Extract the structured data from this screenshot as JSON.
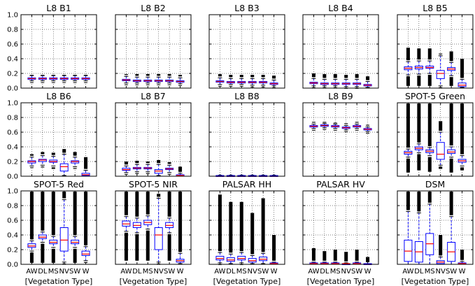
{
  "chart_data": {
    "type": "boxplot",
    "shared_categories": [
      "AW",
      "DL",
      "MS",
      "NV",
      "SW",
      "W"
    ],
    "shared_xlabel": "[Vegetation Type]",
    "ylim": [
      0,
      1.0
    ],
    "yticks": [
      "0.0",
      "0.2",
      "0.4",
      "0.6",
      "0.8",
      "1.0"
    ],
    "grid": true,
    "colors": {
      "box": "#0000ff",
      "median": "#ff0000",
      "flier": "#000000"
    },
    "panels": [
      {
        "title": "L8 B1",
        "boxes": [
          {
            "q1": 0.12,
            "med": 0.13,
            "q3": 0.14,
            "lo": 0.1,
            "hi": 0.17,
            "flo": 0.09,
            "fhi": 0.18
          },
          {
            "q1": 0.12,
            "med": 0.13,
            "q3": 0.14,
            "lo": 0.1,
            "hi": 0.17,
            "flo": 0.09,
            "fhi": 0.18
          },
          {
            "q1": 0.12,
            "med": 0.13,
            "q3": 0.14,
            "lo": 0.1,
            "hi": 0.17,
            "flo": 0.09,
            "fhi": 0.18
          },
          {
            "q1": 0.12,
            "med": 0.13,
            "q3": 0.14,
            "lo": 0.1,
            "hi": 0.17,
            "flo": 0.09,
            "fhi": 0.18
          },
          {
            "q1": 0.12,
            "med": 0.13,
            "q3": 0.14,
            "lo": 0.1,
            "hi": 0.17,
            "flo": 0.09,
            "fhi": 0.18
          },
          {
            "q1": 0.12,
            "med": 0.13,
            "q3": 0.14,
            "lo": 0.1,
            "hi": 0.17,
            "flo": 0.09,
            "fhi": 0.18
          }
        ]
      },
      {
        "title": "L8 B2",
        "boxes": [
          {
            "q1": 0.1,
            "med": 0.11,
            "q3": 0.12,
            "lo": 0.07,
            "hi": 0.16,
            "flo": 0.06,
            "fhi": 0.19
          },
          {
            "q1": 0.09,
            "med": 0.1,
            "q3": 0.11,
            "lo": 0.07,
            "hi": 0.15,
            "flo": 0.06,
            "fhi": 0.19
          },
          {
            "q1": 0.09,
            "med": 0.1,
            "q3": 0.11,
            "lo": 0.07,
            "hi": 0.15,
            "flo": 0.06,
            "fhi": 0.19
          },
          {
            "q1": 0.09,
            "med": 0.1,
            "q3": 0.11,
            "lo": 0.07,
            "hi": 0.15,
            "flo": 0.06,
            "fhi": 0.19
          },
          {
            "q1": 0.09,
            "med": 0.1,
            "q3": 0.11,
            "lo": 0.07,
            "hi": 0.15,
            "flo": 0.06,
            "fhi": 0.19
          },
          {
            "q1": 0.08,
            "med": 0.09,
            "q3": 0.1,
            "lo": 0.06,
            "hi": 0.14,
            "flo": 0.05,
            "fhi": 0.18
          }
        ]
      },
      {
        "title": "L8 B3",
        "boxes": [
          {
            "q1": 0.08,
            "med": 0.09,
            "q3": 0.1,
            "lo": 0.05,
            "hi": 0.14,
            "flo": 0.04,
            "fhi": 0.19
          },
          {
            "q1": 0.07,
            "med": 0.08,
            "q3": 0.09,
            "lo": 0.05,
            "hi": 0.13,
            "flo": 0.04,
            "fhi": 0.18
          },
          {
            "q1": 0.07,
            "med": 0.08,
            "q3": 0.09,
            "lo": 0.05,
            "hi": 0.13,
            "flo": 0.04,
            "fhi": 0.18
          },
          {
            "q1": 0.07,
            "med": 0.08,
            "q3": 0.09,
            "lo": 0.04,
            "hi": 0.13,
            "flo": 0.03,
            "fhi": 0.18
          },
          {
            "q1": 0.07,
            "med": 0.08,
            "q3": 0.09,
            "lo": 0.04,
            "hi": 0.13,
            "flo": 0.03,
            "fhi": 0.18
          },
          {
            "q1": 0.05,
            "med": 0.06,
            "q3": 0.07,
            "lo": 0.03,
            "hi": 0.11,
            "flo": 0.02,
            "fhi": 0.17
          }
        ]
      },
      {
        "title": "L8 B4",
        "boxes": [
          {
            "q1": 0.06,
            "med": 0.07,
            "q3": 0.08,
            "lo": 0.03,
            "hi": 0.13,
            "flo": 0.02,
            "fhi": 0.2
          },
          {
            "q1": 0.05,
            "med": 0.06,
            "q3": 0.07,
            "lo": 0.03,
            "hi": 0.12,
            "flo": 0.02,
            "fhi": 0.19
          },
          {
            "q1": 0.05,
            "med": 0.06,
            "q3": 0.07,
            "lo": 0.03,
            "hi": 0.12,
            "flo": 0.02,
            "fhi": 0.19
          },
          {
            "q1": 0.05,
            "med": 0.06,
            "q3": 0.07,
            "lo": 0.02,
            "hi": 0.12,
            "flo": 0.01,
            "fhi": 0.18
          },
          {
            "q1": 0.05,
            "med": 0.06,
            "q3": 0.07,
            "lo": 0.02,
            "hi": 0.12,
            "flo": 0.01,
            "fhi": 0.19
          },
          {
            "q1": 0.03,
            "med": 0.04,
            "q3": 0.05,
            "lo": 0.01,
            "hi": 0.09,
            "flo": 0.01,
            "fhi": 0.16
          }
        ]
      },
      {
        "title": "L8 B5",
        "boxes": [
          {
            "q1": 0.25,
            "med": 0.27,
            "q3": 0.29,
            "lo": 0.18,
            "hi": 0.36,
            "flo": 0.03,
            "fhi": 0.55
          },
          {
            "q1": 0.26,
            "med": 0.28,
            "q3": 0.3,
            "lo": 0.19,
            "hi": 0.37,
            "flo": 0.03,
            "fhi": 0.54
          },
          {
            "q1": 0.27,
            "med": 0.28,
            "q3": 0.3,
            "lo": 0.2,
            "hi": 0.37,
            "flo": 0.03,
            "fhi": 0.54
          },
          {
            "q1": 0.13,
            "med": 0.2,
            "q3": 0.24,
            "lo": 0.03,
            "hi": 0.44,
            "flo": 0.02,
            "fhi": 0.47
          },
          {
            "q1": 0.24,
            "med": 0.26,
            "q3": 0.28,
            "lo": 0.17,
            "hi": 0.35,
            "flo": 0.03,
            "fhi": 0.5
          },
          {
            "q1": 0.02,
            "med": 0.04,
            "q3": 0.07,
            "lo": 0.01,
            "hi": 0.12,
            "flo": 0.01,
            "fhi": 0.4
          }
        ]
      },
      {
        "title": "L8 B6",
        "boxes": [
          {
            "q1": 0.18,
            "med": 0.2,
            "q3": 0.21,
            "lo": 0.14,
            "hi": 0.26,
            "flo": 0.12,
            "fhi": 0.3
          },
          {
            "q1": 0.2,
            "med": 0.22,
            "q3": 0.23,
            "lo": 0.15,
            "hi": 0.28,
            "flo": 0.12,
            "fhi": 0.33
          },
          {
            "q1": 0.19,
            "med": 0.2,
            "q3": 0.22,
            "lo": 0.14,
            "hi": 0.27,
            "flo": 0.1,
            "fhi": 0.32
          },
          {
            "q1": 0.07,
            "med": 0.13,
            "q3": 0.17,
            "lo": 0.01,
            "hi": 0.3,
            "flo": 0.01,
            "fhi": 0.37
          },
          {
            "q1": 0.18,
            "med": 0.2,
            "q3": 0.21,
            "lo": 0.13,
            "hi": 0.26,
            "flo": 0.1,
            "fhi": 0.33
          },
          {
            "q1": 0.01,
            "med": 0.02,
            "q3": 0.04,
            "lo": 0.0,
            "hi": 0.08,
            "flo": 0.0,
            "fhi": 0.26
          }
        ]
      },
      {
        "title": "L8 B7",
        "boxes": [
          {
            "q1": 0.08,
            "med": 0.09,
            "q3": 0.11,
            "lo": 0.05,
            "hi": 0.14,
            "flo": 0.03,
            "fhi": 0.2
          },
          {
            "q1": 0.1,
            "med": 0.11,
            "q3": 0.12,
            "lo": 0.06,
            "hi": 0.16,
            "flo": 0.03,
            "fhi": 0.21
          },
          {
            "q1": 0.1,
            "med": 0.11,
            "q3": 0.12,
            "lo": 0.06,
            "hi": 0.16,
            "flo": 0.03,
            "fhi": 0.2
          },
          {
            "q1": 0.04,
            "med": 0.07,
            "q3": 0.09,
            "lo": 0.01,
            "hi": 0.16,
            "flo": 0.01,
            "fhi": 0.22
          },
          {
            "q1": 0.09,
            "med": 0.1,
            "q3": 0.11,
            "lo": 0.05,
            "hi": 0.15,
            "flo": 0.03,
            "fhi": 0.19
          },
          {
            "q1": 0.0,
            "med": 0.01,
            "q3": 0.02,
            "lo": 0.0,
            "hi": 0.04,
            "flo": 0.0,
            "fhi": 0.13
          }
        ]
      },
      {
        "title": "L8 B8",
        "boxes": [
          {
            "q1": 0.0,
            "med": 0.0,
            "q3": 0.01,
            "lo": 0.0,
            "hi": 0.01,
            "flo": 0.0,
            "fhi": 0.02
          },
          {
            "q1": 0.0,
            "med": 0.0,
            "q3": 0.01,
            "lo": 0.0,
            "hi": 0.01,
            "flo": 0.0,
            "fhi": 0.02
          },
          {
            "q1": 0.0,
            "med": 0.0,
            "q3": 0.01,
            "lo": 0.0,
            "hi": 0.01,
            "flo": 0.0,
            "fhi": 0.02
          },
          {
            "q1": 0.0,
            "med": 0.0,
            "q3": 0.01,
            "lo": 0.0,
            "hi": 0.01,
            "flo": 0.0,
            "fhi": 0.02
          },
          {
            "q1": 0.0,
            "med": 0.0,
            "q3": 0.01,
            "lo": 0.0,
            "hi": 0.01,
            "flo": 0.0,
            "fhi": 0.02
          },
          {
            "q1": 0.0,
            "med": 0.0,
            "q3": 0.01,
            "lo": 0.0,
            "hi": 0.01,
            "flo": 0.0,
            "fhi": 0.02
          }
        ]
      },
      {
        "title": "L8 B9",
        "boxes": [
          {
            "q1": 0.67,
            "med": 0.68,
            "q3": 0.69,
            "lo": 0.65,
            "hi": 0.71,
            "flo": 0.63,
            "fhi": 0.74
          },
          {
            "q1": 0.68,
            "med": 0.69,
            "q3": 0.7,
            "lo": 0.66,
            "hi": 0.72,
            "flo": 0.64,
            "fhi": 0.74
          },
          {
            "q1": 0.67,
            "med": 0.68,
            "q3": 0.69,
            "lo": 0.65,
            "hi": 0.71,
            "flo": 0.63,
            "fhi": 0.73
          },
          {
            "q1": 0.65,
            "med": 0.66,
            "q3": 0.67,
            "lo": 0.63,
            "hi": 0.69,
            "flo": 0.61,
            "fhi": 0.72
          },
          {
            "q1": 0.67,
            "med": 0.68,
            "q3": 0.69,
            "lo": 0.65,
            "hi": 0.71,
            "flo": 0.63,
            "fhi": 0.74
          },
          {
            "q1": 0.63,
            "med": 0.64,
            "q3": 0.65,
            "lo": 0.61,
            "hi": 0.67,
            "flo": 0.6,
            "fhi": 0.7
          }
        ]
      },
      {
        "title": "SPOT-5 Green",
        "boxes": [
          {
            "q1": 0.3,
            "med": 0.32,
            "q3": 0.34,
            "lo": 0.26,
            "hi": 0.37,
            "flo": 0.05,
            "fhi": 0.99
          },
          {
            "q1": 0.36,
            "med": 0.38,
            "q3": 0.4,
            "lo": 0.32,
            "hi": 0.44,
            "flo": 0.08,
            "fhi": 0.99
          },
          {
            "q1": 0.32,
            "med": 0.34,
            "q3": 0.36,
            "lo": 0.28,
            "hi": 0.39,
            "flo": 0.06,
            "fhi": 0.99
          },
          {
            "q1": 0.23,
            "med": 0.3,
            "q3": 0.46,
            "lo": 0.15,
            "hi": 0.6,
            "flo": 0.1,
            "fhi": 0.75
          },
          {
            "q1": 0.31,
            "med": 0.33,
            "q3": 0.36,
            "lo": 0.26,
            "hi": 0.4,
            "flo": 0.05,
            "fhi": 0.99
          },
          {
            "q1": 0.19,
            "med": 0.21,
            "q3": 0.23,
            "lo": 0.14,
            "hi": 0.28,
            "flo": 0.08,
            "fhi": 0.99
          }
        ]
      },
      {
        "title": "SPOT-5 Red",
        "boxes": [
          {
            "q1": 0.23,
            "med": 0.25,
            "q3": 0.28,
            "lo": 0.18,
            "hi": 0.32,
            "flo": 0.02,
            "fhi": 0.99
          },
          {
            "q1": 0.35,
            "med": 0.37,
            "q3": 0.4,
            "lo": 0.3,
            "hi": 0.44,
            "flo": 0.02,
            "fhi": 0.99
          },
          {
            "q1": 0.28,
            "med": 0.3,
            "q3": 0.33,
            "lo": 0.23,
            "hi": 0.38,
            "flo": 0.02,
            "fhi": 0.99
          },
          {
            "q1": 0.18,
            "med": 0.33,
            "q3": 0.5,
            "lo": 0.03,
            "hi": 0.88,
            "flo": 0.02,
            "fhi": 0.99
          },
          {
            "q1": 0.28,
            "med": 0.3,
            "q3": 0.33,
            "lo": 0.23,
            "hi": 0.38,
            "flo": 0.02,
            "fhi": 0.99
          },
          {
            "q1": 0.12,
            "med": 0.14,
            "q3": 0.18,
            "lo": 0.05,
            "hi": 0.24,
            "flo": 0.02,
            "fhi": 0.99
          }
        ]
      },
      {
        "title": "SPOT-5 NIR",
        "boxes": [
          {
            "q1": 0.52,
            "med": 0.55,
            "q3": 0.59,
            "lo": 0.45,
            "hi": 0.65,
            "flo": 0.05,
            "fhi": 0.99
          },
          {
            "q1": 0.5,
            "med": 0.53,
            "q3": 0.57,
            "lo": 0.43,
            "hi": 0.63,
            "flo": 0.05,
            "fhi": 0.99
          },
          {
            "q1": 0.54,
            "med": 0.57,
            "q3": 0.6,
            "lo": 0.48,
            "hi": 0.66,
            "flo": 0.05,
            "fhi": 0.99
          },
          {
            "q1": 0.2,
            "med": 0.4,
            "q3": 0.5,
            "lo": 0.03,
            "hi": 0.9,
            "flo": 0.02,
            "fhi": 0.96
          },
          {
            "q1": 0.5,
            "med": 0.53,
            "q3": 0.57,
            "lo": 0.43,
            "hi": 0.63,
            "flo": 0.05,
            "fhi": 0.99
          },
          {
            "q1": 0.03,
            "med": 0.05,
            "q3": 0.07,
            "lo": 0.01,
            "hi": 0.15,
            "flo": 0.01,
            "fhi": 0.99
          }
        ]
      },
      {
        "title": "PALSAR HH",
        "boxes": [
          {
            "q1": 0.06,
            "med": 0.08,
            "q3": 0.11,
            "lo": 0.02,
            "hi": 0.16,
            "flo": 0.01,
            "fhi": 0.95
          },
          {
            "q1": 0.04,
            "med": 0.06,
            "q3": 0.09,
            "lo": 0.01,
            "hi": 0.14,
            "flo": 0.01,
            "fhi": 0.85
          },
          {
            "q1": 0.06,
            "med": 0.08,
            "q3": 0.11,
            "lo": 0.02,
            "hi": 0.16,
            "flo": 0.01,
            "fhi": 0.85
          },
          {
            "q1": 0.03,
            "med": 0.05,
            "q3": 0.08,
            "lo": 0.01,
            "hi": 0.12,
            "flo": 0.01,
            "fhi": 0.7
          },
          {
            "q1": 0.05,
            "med": 0.07,
            "q3": 0.1,
            "lo": 0.01,
            "hi": 0.15,
            "flo": 0.01,
            "fhi": 0.9
          },
          {
            "q1": 0.0,
            "med": 0.01,
            "q3": 0.02,
            "lo": 0.0,
            "hi": 0.03,
            "flo": 0.0,
            "fhi": 0.4
          }
        ]
      },
      {
        "title": "PALSAR HV",
        "boxes": [
          {
            "q1": 0.0,
            "med": 0.01,
            "q3": 0.02,
            "lo": 0.0,
            "hi": 0.03,
            "flo": 0.0,
            "fhi": 0.22
          },
          {
            "q1": 0.0,
            "med": 0.01,
            "q3": 0.02,
            "lo": 0.0,
            "hi": 0.03,
            "flo": 0.0,
            "fhi": 0.18
          },
          {
            "q1": 0.0,
            "med": 0.01,
            "q3": 0.02,
            "lo": 0.0,
            "hi": 0.03,
            "flo": 0.0,
            "fhi": 0.2
          },
          {
            "q1": 0.0,
            "med": 0.01,
            "q3": 0.01,
            "lo": 0.0,
            "hi": 0.02,
            "flo": 0.0,
            "fhi": 0.17
          },
          {
            "q1": 0.0,
            "med": 0.01,
            "q3": 0.02,
            "lo": 0.0,
            "hi": 0.03,
            "flo": 0.0,
            "fhi": 0.2
          },
          {
            "q1": 0.0,
            "med": 0.0,
            "q3": 0.01,
            "lo": 0.0,
            "hi": 0.01,
            "flo": 0.0,
            "fhi": 0.1
          }
        ]
      },
      {
        "title": "DSM",
        "boxes": [
          {
            "q1": 0.04,
            "med": 0.18,
            "q3": 0.33,
            "lo": 0.0,
            "hi": 0.72,
            "flo": 0.0,
            "fhi": 0.99
          },
          {
            "q1": 0.03,
            "med": 0.17,
            "q3": 0.31,
            "lo": 0.0,
            "hi": 0.7,
            "flo": 0.0,
            "fhi": 0.99
          },
          {
            "q1": 0.13,
            "med": 0.28,
            "q3": 0.42,
            "lo": 0.0,
            "hi": 0.82,
            "flo": 0.0,
            "fhi": 0.99
          },
          {
            "q1": 0.01,
            "med": 0.03,
            "q3": 0.05,
            "lo": 0.0,
            "hi": 0.1,
            "flo": 0.0,
            "fhi": 0.4
          },
          {
            "q1": 0.04,
            "med": 0.17,
            "q3": 0.3,
            "lo": 0.0,
            "hi": 0.65,
            "flo": 0.0,
            "fhi": 0.99
          },
          {
            "q1": 0.0,
            "med": 0.01,
            "q3": 0.02,
            "lo": 0.0,
            "hi": 0.04,
            "flo": 0.0,
            "fhi": 0.2
          }
        ]
      }
    ]
  }
}
